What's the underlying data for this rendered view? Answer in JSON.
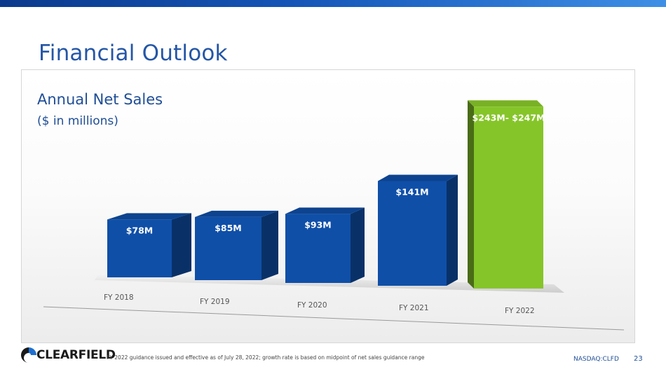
{
  "page": {
    "title": "Financial Outlook",
    "footnote": "FY 2022 guidance issued and effective as of July 28, 2022; growth rate is based on midpoint of net sales guidance range",
    "ticker": "NASDAQ:CLFD",
    "page_number": "23",
    "logo_text": "CLEARFIELD"
  },
  "colors": {
    "accent": "#2456a6",
    "bar_blue": "#0f4fa8",
    "bar_green": "#86c529"
  },
  "chart_data": {
    "type": "bar",
    "title": "Annual Net Sales",
    "subtitle": "($ in millions)",
    "categories": [
      "FY 2018",
      "FY 2019",
      "FY 2020",
      "FY 2021",
      "FY 2022"
    ],
    "values": [
      78,
      85,
      93,
      141,
      245
    ],
    "ranges": [
      null,
      null,
      null,
      null,
      [
        243,
        247
      ]
    ],
    "data_labels": [
      "$78M",
      "$85M",
      "$93M",
      "$141M",
      "$243M- $247M"
    ],
    "series_colors": [
      "#0f4fa8",
      "#0f4fa8",
      "#0f4fa8",
      "#0f4fa8",
      "#86c529"
    ],
    "style": "3d-perspective",
    "grid": false,
    "legend": "none"
  }
}
